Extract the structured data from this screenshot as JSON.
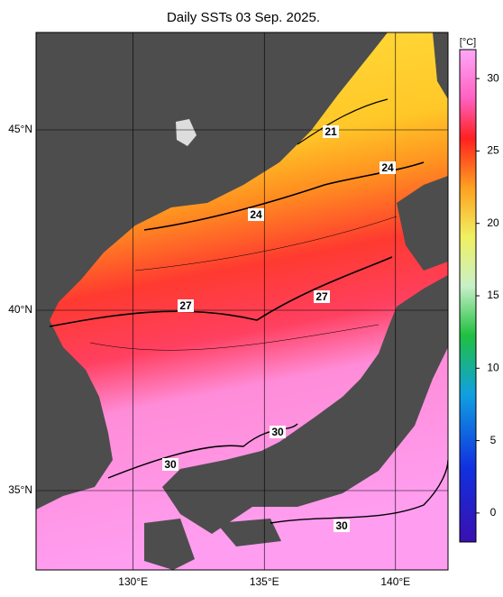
{
  "title": "Daily SSTs 03 Sep. 2025.",
  "xlim": [
    126.3,
    142
  ],
  "ylim": [
    32.8,
    47.7
  ],
  "xticks": [
    {
      "value": 130,
      "label": "130°E"
    },
    {
      "value": 135,
      "label": "135°E"
    },
    {
      "value": 140,
      "label": "140°E"
    }
  ],
  "yticks": [
    {
      "value": 35,
      "label": "35°N"
    },
    {
      "value": 40,
      "label": "40°N"
    },
    {
      "value": 45,
      "label": "45°N"
    }
  ],
  "colorbar": {
    "unit": "[°C]",
    "lim": [
      -2,
      32
    ],
    "ticks": [
      0,
      5,
      10,
      15,
      20,
      25,
      30
    ]
  },
  "contour_labels": [
    21,
    24,
    24,
    27,
    27,
    30,
    30,
    30
  ]
}
